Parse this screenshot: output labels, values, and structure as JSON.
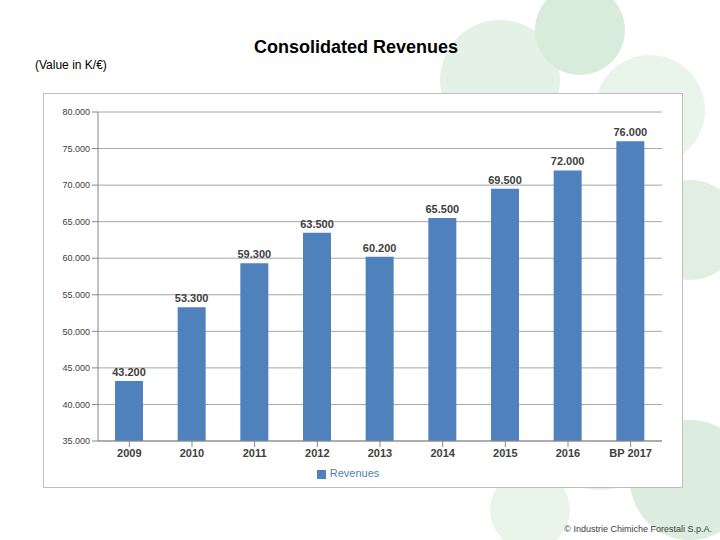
{
  "chart_data": {
    "type": "bar",
    "title": "Consolidated Revenues",
    "subtitle": "(Value in K/€)",
    "annotations": [
      "© Industrie Chimiche Forestali S.p.A."
    ],
    "categories": [
      "2009",
      "2010",
      "2011",
      "2012",
      "2013",
      "2014",
      "2015",
      "2016",
      "BP 2017"
    ],
    "series": [
      {
        "name": "Revenues",
        "color": "#4f81bd",
        "values": [
          43200,
          53300,
          59300,
          63500,
          60200,
          65500,
          69500,
          72000,
          76000
        ],
        "value_labels": [
          "43.200",
          "53.300",
          "59.300",
          "63.500",
          "60.200",
          "65.500",
          "69.500",
          "72.000",
          "76.000"
        ]
      }
    ],
    "ylim": [
      35000,
      80000
    ],
    "yticks": [
      {
        "value": 35000,
        "label": "35.000"
      },
      {
        "value": 40000,
        "label": "40.000"
      },
      {
        "value": 45000,
        "label": "45.000"
      },
      {
        "value": 50000,
        "label": "50.000"
      },
      {
        "value": 55000,
        "label": "55.000"
      },
      {
        "value": 60000,
        "label": "60.000"
      },
      {
        "value": 65000,
        "label": "65.000"
      },
      {
        "value": 70000,
        "label": "70.000"
      },
      {
        "value": 75000,
        "label": "75.000"
      },
      {
        "value": 80000,
        "label": "80.000"
      }
    ],
    "grid": true,
    "legend": "bottom",
    "data_labels": true
  }
}
